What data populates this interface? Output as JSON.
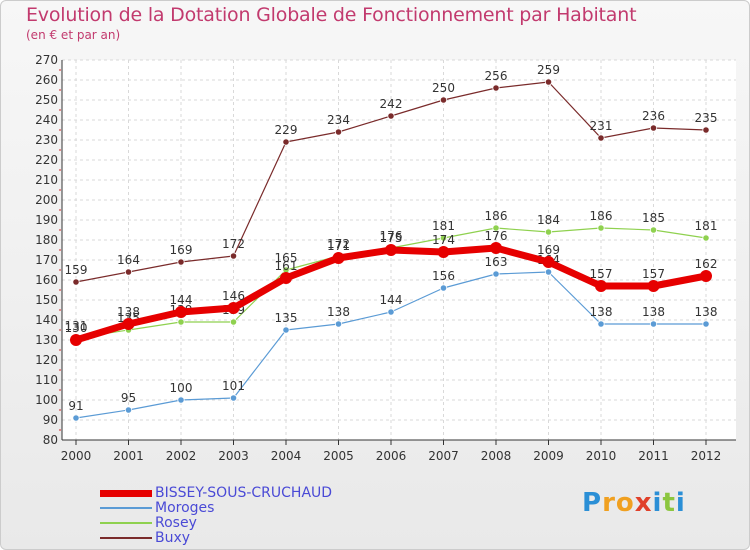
{
  "chart_data": {
    "type": "line",
    "title": "Evolution de la Dotation Globale de Fonctionnement par Habitant",
    "subtitle": "(en € et par an)",
    "xlabel": "",
    "ylabel": "",
    "ylim": [
      80,
      270
    ],
    "ytick_step": 10,
    "grid": true,
    "legend_position": "bottom-left",
    "categories": [
      "2000",
      "2001",
      "2002",
      "2003",
      "2004",
      "2005",
      "2006",
      "2007",
      "2008",
      "2009",
      "2010",
      "2011",
      "2012"
    ],
    "series": [
      {
        "name": "Buxy",
        "color": "#7a2b2b",
        "values": [
          159,
          164,
          169,
          172,
          229,
          234,
          242,
          250,
          256,
          259,
          231,
          236,
          235
        ]
      },
      {
        "name": "Rosey",
        "color": "#8fd14f",
        "values": [
          131,
          135,
          139,
          139,
          165,
          172,
          176,
          181,
          186,
          184,
          186,
          185,
          181
        ]
      },
      {
        "name": "Moroges",
        "color": "#5b9bd5",
        "values": [
          91,
          95,
          100,
          101,
          135,
          138,
          144,
          156,
          163,
          164,
          138,
          138,
          138
        ]
      },
      {
        "name": "BISSEY-SOUS-CRUCHAUD",
        "color": "#e60000",
        "values": [
          130,
          138,
          144,
          146,
          161,
          171,
          175,
          174,
          176,
          169,
          157,
          157,
          162
        ]
      }
    ]
  },
  "legend": {
    "items": [
      {
        "label": "BISSEY-SOUS-CRUCHAUD",
        "color": "#e60000"
      },
      {
        "label": "Moroges",
        "color": "#5b9bd5"
      },
      {
        "label": "Rosey",
        "color": "#8fd14f"
      },
      {
        "label": "Buxy",
        "color": "#7a2b2b"
      }
    ]
  },
  "logo": {
    "letters": [
      "P",
      "r",
      "o",
      "x",
      "i",
      "t",
      "i"
    ],
    "colors": [
      "#2b8fd6",
      "#f0a020",
      "#f0a020",
      "#e0402a",
      "#2b8fd6",
      "#8cc63f",
      "#2b8fd6"
    ]
  }
}
